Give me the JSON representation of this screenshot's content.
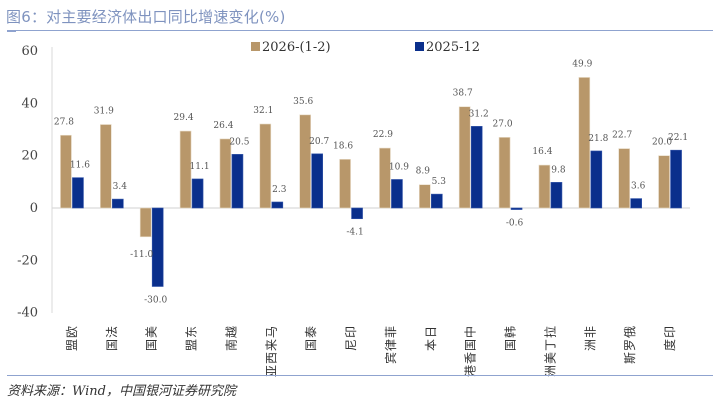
{
  "header": {
    "title": "图6：对主要经济体出口同比增速变化(%)"
  },
  "footer": {
    "source": "资料来源：Wind，中国银河证券研究院"
  },
  "chart_data": {
    "type": "bar",
    "title": "图6：对主要经济体出口同比增速变化(%)",
    "xlabel": "",
    "ylabel": "",
    "ylim": [
      -40,
      60
    ],
    "yticks": [
      60,
      40,
      20,
      0,
      -20,
      -40
    ],
    "grid": false,
    "legend_position": "top-center",
    "categories": [
      "欧盟",
      "法国",
      "美国",
      "东盟",
      "越南",
      "马来西亚",
      "泰国",
      "印尼",
      "菲律宾",
      "日本",
      "中国香港",
      "韩国",
      "拉丁美洲",
      "非洲",
      "俄罗斯",
      "印度"
    ],
    "series": [
      {
        "name": "2026-(1-2)",
        "color": "#b8976a",
        "values": [
          27.8,
          31.9,
          -11.0,
          29.4,
          26.4,
          32.1,
          35.6,
          18.6,
          22.9,
          8.9,
          38.7,
          27.0,
          16.4,
          49.9,
          22.7,
          20.0
        ]
      },
      {
        "name": "2025-12",
        "color": "#0a2f8c",
        "values": [
          11.6,
          3.4,
          -30.0,
          11.1,
          20.5,
          2.3,
          20.7,
          -4.1,
          10.9,
          5.3,
          31.2,
          -0.6,
          9.8,
          21.8,
          3.6,
          22.1
        ]
      }
    ]
  }
}
